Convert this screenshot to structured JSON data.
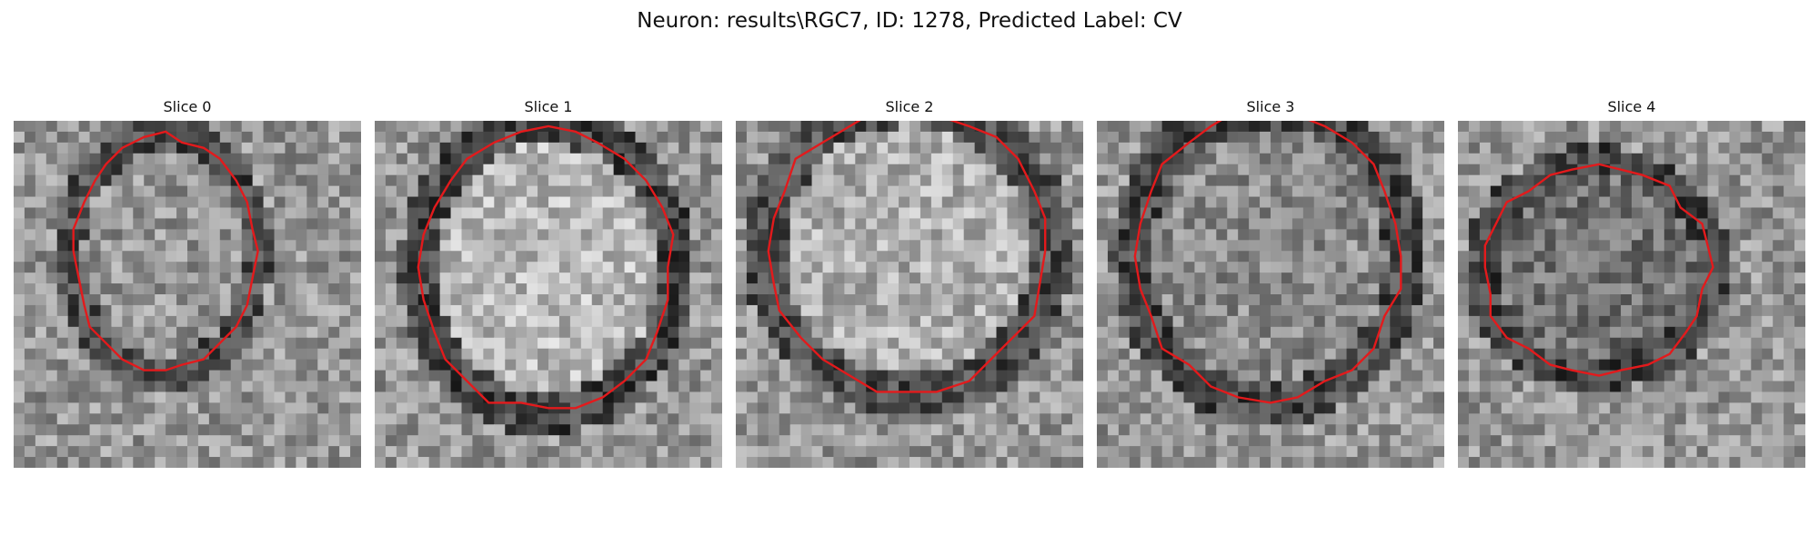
{
  "figure": {
    "title": "Neuron: results\\RGC7, ID: 1278, Predicted Label: CV"
  },
  "slices": [
    {
      "label": "Slice 0"
    },
    {
      "label": "Slice 1"
    },
    {
      "label": "Slice 2"
    },
    {
      "label": "Slice 3"
    },
    {
      "label": "Slice 4"
    }
  ],
  "colors": {
    "contour": "#e31a1c",
    "background": "#ffffff"
  }
}
